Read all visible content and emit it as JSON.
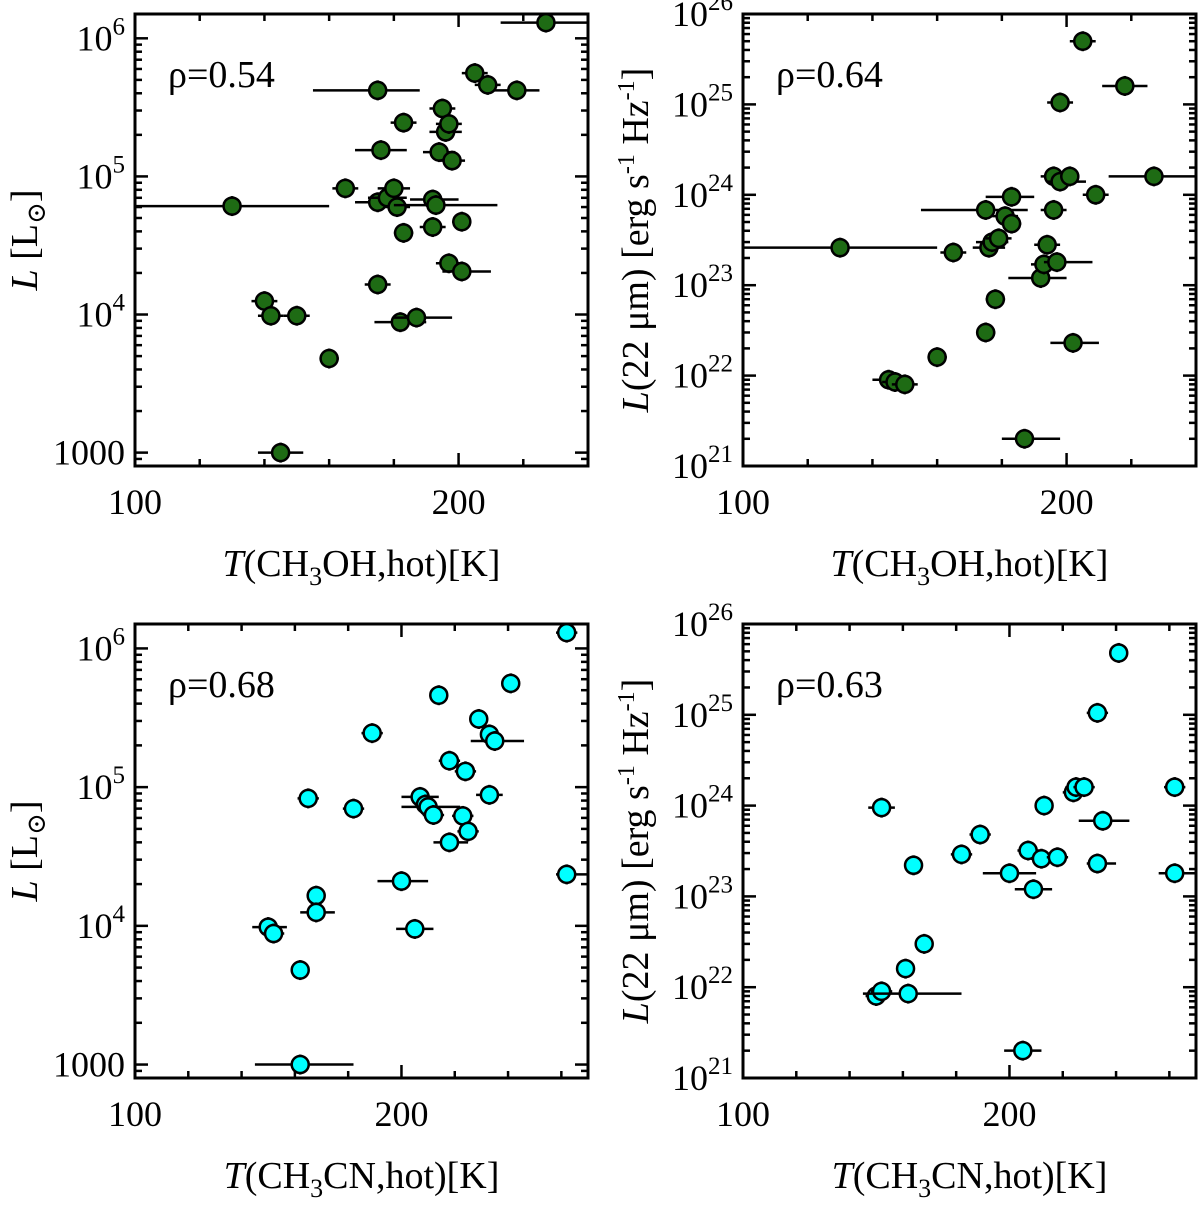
{
  "chart_data": [
    {
      "type": "scatter",
      "id": "top-left",
      "annotation": "ρ=0.54",
      "xlabel": {
        "italic": "T",
        "pre": "(CH",
        "sub": "3",
        "post": "OH,hot)[K]"
      },
      "ylabel": {
        "italic": "L",
        "text": " [L",
        "sym": "⊙",
        "close": "]"
      },
      "xlim": [
        100,
        240
      ],
      "ylim": [
        800,
        1500000
      ],
      "yscale": "log",
      "xticks": [
        100,
        200
      ],
      "xtick_labels": [
        "100",
        "200"
      ],
      "yticks": [
        1000,
        10000,
        100000,
        1000000
      ],
      "ytick_labels": [
        {
          "text": "1000"
        },
        {
          "base": "10",
          "exp": "4"
        },
        {
          "base": "10",
          "exp": "5"
        },
        {
          "base": "10",
          "exp": "6"
        }
      ],
      "marker_color": "#1e6b14",
      "points": [
        {
          "x": 130,
          "y": 61000,
          "xlo": 100,
          "xhi": 160
        },
        {
          "x": 145,
          "y": 1000,
          "xlo": 138,
          "xhi": 152
        },
        {
          "x": 140,
          "y": 12500,
          "xlo": 136,
          "xhi": 144
        },
        {
          "x": 142,
          "y": 9800,
          "xlo": 138,
          "xhi": 146
        },
        {
          "x": 150,
          "y": 9800,
          "xlo": 146,
          "xhi": 154
        },
        {
          "x": 160,
          "y": 4800,
          "xlo": 157,
          "xhi": 163
        },
        {
          "x": 165,
          "y": 82000,
          "xlo": 161,
          "xhi": 169
        },
        {
          "x": 175,
          "y": 420000,
          "xlo": 155,
          "xhi": 188
        },
        {
          "x": 176,
          "y": 155000,
          "xlo": 168,
          "xhi": 184
        },
        {
          "x": 175,
          "y": 16500,
          "xlo": 171,
          "xhi": 179
        },
        {
          "x": 175,
          "y": 65000,
          "xlo": 168,
          "xhi": 182
        },
        {
          "x": 178,
          "y": 70000,
          "xlo": 172,
          "xhi": 184
        },
        {
          "x": 180,
          "y": 82000,
          "xlo": 175,
          "xhi": 185
        },
        {
          "x": 181,
          "y": 60000,
          "xlo": 177,
          "xhi": 185
        },
        {
          "x": 183,
          "y": 245000,
          "xlo": 179,
          "xhi": 187
        },
        {
          "x": 183,
          "y": 39000,
          "xlo": 180,
          "xhi": 186
        },
        {
          "x": 182,
          "y": 8800,
          "xlo": 174,
          "xhi": 190
        },
        {
          "x": 187,
          "y": 9500,
          "xlo": 180,
          "xhi": 198
        },
        {
          "x": 192,
          "y": 68000,
          "xlo": 185,
          "xhi": 200
        },
        {
          "x": 192,
          "y": 43000,
          "xlo": 188,
          "xhi": 196
        },
        {
          "x": 193,
          "y": 62000,
          "xlo": 180,
          "xhi": 212
        },
        {
          "x": 194,
          "y": 150000,
          "xlo": 189,
          "xhi": 199
        },
        {
          "x": 195,
          "y": 310000,
          "xlo": 191,
          "xhi": 199
        },
        {
          "x": 196,
          "y": 210000,
          "xlo": 191,
          "xhi": 201
        },
        {
          "x": 197,
          "y": 240000,
          "xlo": 193,
          "xhi": 201
        },
        {
          "x": 198,
          "y": 130000,
          "xlo": 194,
          "xhi": 202
        },
        {
          "x": 197,
          "y": 23500,
          "xlo": 193,
          "xhi": 201
        },
        {
          "x": 201,
          "y": 47000,
          "xlo": 198,
          "xhi": 204
        },
        {
          "x": 201,
          "y": 20500,
          "xlo": 195,
          "xhi": 210
        },
        {
          "x": 205,
          "y": 560000,
          "xlo": 201,
          "xhi": 209
        },
        {
          "x": 209,
          "y": 460000,
          "xlo": 205,
          "xhi": 213
        },
        {
          "x": 218,
          "y": 420000,
          "xlo": 211,
          "xhi": 225
        },
        {
          "x": 227,
          "y": 1300000,
          "xlo": 213,
          "xhi": 240
        }
      ]
    },
    {
      "type": "scatter",
      "id": "top-right",
      "annotation": "ρ=0.64",
      "xlabel": {
        "italic": "T",
        "pre": "(CH",
        "sub": "3",
        "post": "OH,hot)[K]"
      },
      "ylabel": {
        "italic": "L",
        "text": "(22 μm) [erg s",
        "sup1": "-1",
        "mid": " Hz",
        "sup2": "-1",
        "close": "]"
      },
      "xlim": [
        100,
        240
      ],
      "ylim": [
        1e+21,
        1e+26
      ],
      "yscale": "log",
      "xticks": [
        100,
        200
      ],
      "xtick_labels": [
        "100",
        "200"
      ],
      "yticks": [
        1e+21,
        1e+22,
        1e+23,
        1e+24,
        1e+25,
        1e+26
      ],
      "ytick_labels": [
        {
          "base": "10",
          "exp": "21"
        },
        {
          "base": "10",
          "exp": "22"
        },
        {
          "base": "10",
          "exp": "23"
        },
        {
          "base": "10",
          "exp": "24"
        },
        {
          "base": "10",
          "exp": "25"
        },
        {
          "base": "10",
          "exp": "26"
        }
      ],
      "marker_color": "#1e6b14",
      "points": [
        {
          "x": 130,
          "y": 2.6e+23,
          "xlo": 100,
          "xhi": 160
        },
        {
          "x": 145,
          "y": 9e+21,
          "xlo": 140,
          "xhi": 152
        },
        {
          "x": 147,
          "y": 8.5e+21,
          "xlo": 143,
          "xhi": 151
        },
        {
          "x": 150,
          "y": 8e+21,
          "xlo": 146,
          "xhi": 154
        },
        {
          "x": 160,
          "y": 1.6e+22,
          "xlo": 157,
          "xhi": 163
        },
        {
          "x": 165,
          "y": 2.3e+23,
          "xlo": 161,
          "xhi": 169
        },
        {
          "x": 175,
          "y": 6.8e+23,
          "xlo": 155,
          "xhi": 188
        },
        {
          "x": 175,
          "y": 3e+22,
          "xlo": 172,
          "xhi": 178
        },
        {
          "x": 176,
          "y": 2.6e+23,
          "xlo": 171,
          "xhi": 181
        },
        {
          "x": 177,
          "y": 3e+23,
          "xlo": 172,
          "xhi": 182
        },
        {
          "x": 178,
          "y": 7e+22,
          "xlo": 175,
          "xhi": 181
        },
        {
          "x": 179,
          "y": 3.3e+23,
          "xlo": 175,
          "xhi": 183
        },
        {
          "x": 181,
          "y": 5.8e+23,
          "xlo": 177,
          "xhi": 185
        },
        {
          "x": 183,
          "y": 9.5e+23,
          "xlo": 175,
          "xhi": 190
        },
        {
          "x": 183,
          "y": 4.8e+23,
          "xlo": 180,
          "xhi": 186
        },
        {
          "x": 187,
          "y": 2e+21,
          "xlo": 180,
          "xhi": 198
        },
        {
          "x": 192,
          "y": 1.2e+23,
          "xlo": 182,
          "xhi": 200
        },
        {
          "x": 193,
          "y": 1.7e+23,
          "xlo": 189,
          "xhi": 197
        },
        {
          "x": 194,
          "y": 2.8e+23,
          "xlo": 190,
          "xhi": 198
        },
        {
          "x": 196,
          "y": 6.8e+23,
          "xlo": 192,
          "xhi": 200
        },
        {
          "x": 196,
          "y": 1.6e+24,
          "xlo": 192,
          "xhi": 200
        },
        {
          "x": 197,
          "y": 1.8e+23,
          "xlo": 193,
          "xhi": 208
        },
        {
          "x": 198,
          "y": 1.05e+25,
          "xlo": 194,
          "xhi": 202
        },
        {
          "x": 198,
          "y": 1.4e+24,
          "xlo": 194,
          "xhi": 206
        },
        {
          "x": 201,
          "y": 1.6e+24,
          "xlo": 198,
          "xhi": 204
        },
        {
          "x": 202,
          "y": 2.3e+22,
          "xlo": 195,
          "xhi": 210
        },
        {
          "x": 205,
          "y": 5e+25,
          "xlo": 201,
          "xhi": 209
        },
        {
          "x": 209,
          "y": 1e+24,
          "xlo": 205,
          "xhi": 213
        },
        {
          "x": 218,
          "y": 1.6e+25,
          "xlo": 211,
          "xhi": 225
        },
        {
          "x": 227,
          "y": 1.6e+24,
          "xlo": 213,
          "xhi": 240
        }
      ]
    },
    {
      "type": "scatter",
      "id": "bottom-left",
      "annotation": "ρ=0.68",
      "xlabel": {
        "italic": "T",
        "pre": "(CH",
        "sub": "3",
        "post": "CN,hot)[K]"
      },
      "ylabel": {
        "italic": "L",
        "text": " [L",
        "sym": "⊙",
        "close": "]"
      },
      "xlim": [
        100,
        270
      ],
      "ylim": [
        800,
        1500000
      ],
      "yscale": "log",
      "xticks": [
        100,
        200
      ],
      "xtick_labels": [
        "100",
        "200"
      ],
      "yticks": [
        1000,
        10000,
        100000,
        1000000
      ],
      "ytick_labels": [
        {
          "text": "1000"
        },
        {
          "base": "10",
          "exp": "4"
        },
        {
          "base": "10",
          "exp": "5"
        },
        {
          "base": "10",
          "exp": "6"
        }
      ],
      "marker_color": "#00ffff",
      "points": [
        {
          "x": 162,
          "y": 1000,
          "xlo": 145,
          "xhi": 182
        },
        {
          "x": 150,
          "y": 9800,
          "xlo": 144,
          "xhi": 157
        },
        {
          "x": 152,
          "y": 8800,
          "xlo": 148,
          "xhi": 156
        },
        {
          "x": 162,
          "y": 4800,
          "xlo": 159,
          "xhi": 165
        },
        {
          "x": 165,
          "y": 83000,
          "xlo": 161,
          "xhi": 169
        },
        {
          "x": 168,
          "y": 16500,
          "xlo": 165,
          "xhi": 171
        },
        {
          "x": 168,
          "y": 12500,
          "xlo": 162,
          "xhi": 175
        },
        {
          "x": 182,
          "y": 70000,
          "xlo": 178,
          "xhi": 186
        },
        {
          "x": 189,
          "y": 245000,
          "xlo": 185,
          "xhi": 193
        },
        {
          "x": 200,
          "y": 21000,
          "xlo": 191,
          "xhi": 210
        },
        {
          "x": 205,
          "y": 9500,
          "xlo": 198,
          "xhi": 212
        },
        {
          "x": 207,
          "y": 85000,
          "xlo": 200,
          "xhi": 214
        },
        {
          "x": 209,
          "y": 75000,
          "xlo": 205,
          "xhi": 213
        },
        {
          "x": 210,
          "y": 72000,
          "xlo": 200,
          "xhi": 222
        },
        {
          "x": 212,
          "y": 63000,
          "xlo": 208,
          "xhi": 216
        },
        {
          "x": 214,
          "y": 460000,
          "xlo": 211,
          "xhi": 217
        },
        {
          "x": 218,
          "y": 155000,
          "xlo": 214,
          "xhi": 222
        },
        {
          "x": 218,
          "y": 40000,
          "xlo": 212,
          "xhi": 225
        },
        {
          "x": 223,
          "y": 62000,
          "xlo": 219,
          "xhi": 227
        },
        {
          "x": 224,
          "y": 130000,
          "xlo": 220,
          "xhi": 228
        },
        {
          "x": 225,
          "y": 48000,
          "xlo": 221,
          "xhi": 229
        },
        {
          "x": 229,
          "y": 310000,
          "xlo": 226,
          "xhi": 232
        },
        {
          "x": 233,
          "y": 88000,
          "xlo": 228,
          "xhi": 238
        },
        {
          "x": 233,
          "y": 240000,
          "xlo": 230,
          "xhi": 237
        },
        {
          "x": 235,
          "y": 215000,
          "xlo": 226,
          "xhi": 246
        },
        {
          "x": 241,
          "y": 560000,
          "xlo": 238,
          "xhi": 244
        },
        {
          "x": 262,
          "y": 1300000,
          "xlo": 258,
          "xhi": 266
        },
        {
          "x": 262,
          "y": 23500,
          "xlo": 258,
          "xhi": 270
        }
      ]
    },
    {
      "type": "scatter",
      "id": "bottom-right",
      "annotation": "ρ=0.63",
      "xlabel": {
        "italic": "T",
        "pre": "(CH",
        "sub": "3",
        "post": "CN,hot)[K]"
      },
      "ylabel": {
        "italic": "L",
        "text": "(22 μm) [erg s",
        "sup1": "-1",
        "mid": " Hz",
        "sup2": "-1",
        "close": "]"
      },
      "xlim": [
        100,
        270
      ],
      "ylim": [
        1e+21,
        1e+26
      ],
      "yscale": "log",
      "xticks": [
        100,
        200
      ],
      "xtick_labels": [
        "100",
        "200"
      ],
      "yticks": [
        1e+21,
        1e+22,
        1e+23,
        1e+24,
        1e+25,
        1e+26
      ],
      "ytick_labels": [
        {
          "base": "10",
          "exp": "21"
        },
        {
          "base": "10",
          "exp": "22"
        },
        {
          "base": "10",
          "exp": "23"
        },
        {
          "base": "10",
          "exp": "24"
        },
        {
          "base": "10",
          "exp": "25"
        },
        {
          "base": "10",
          "exp": "26"
        }
      ],
      "marker_color": "#00ffff",
      "points": [
        {
          "x": 150,
          "y": 8e+21,
          "xlo": 146,
          "xhi": 154
        },
        {
          "x": 152,
          "y": 9e+21,
          "xlo": 148,
          "xhi": 156
        },
        {
          "x": 152,
          "y": 9.5e+23,
          "xlo": 147,
          "xhi": 157
        },
        {
          "x": 161,
          "y": 1.6e+22,
          "xlo": 158,
          "xhi": 164
        },
        {
          "x": 162,
          "y": 8.5e+21,
          "xlo": 145,
          "xhi": 182
        },
        {
          "x": 164,
          "y": 2.2e+23,
          "xlo": 161,
          "xhi": 167
        },
        {
          "x": 168,
          "y": 3e+22,
          "xlo": 165,
          "xhi": 171
        },
        {
          "x": 182,
          "y": 2.9e+23,
          "xlo": 178,
          "xhi": 186
        },
        {
          "x": 189,
          "y": 4.8e+23,
          "xlo": 185,
          "xhi": 193
        },
        {
          "x": 200,
          "y": 1.8e+23,
          "xlo": 190,
          "xhi": 210
        },
        {
          "x": 205,
          "y": 2e+21,
          "xlo": 198,
          "xhi": 212
        },
        {
          "x": 207,
          "y": 3.2e+23,
          "xlo": 203,
          "xhi": 211
        },
        {
          "x": 209,
          "y": 1.2e+23,
          "xlo": 202,
          "xhi": 216
        },
        {
          "x": 212,
          "y": 2.6e+23,
          "xlo": 208,
          "xhi": 216
        },
        {
          "x": 213,
          "y": 1e+24,
          "xlo": 210,
          "xhi": 216
        },
        {
          "x": 218,
          "y": 2.7e+23,
          "xlo": 214,
          "xhi": 222
        },
        {
          "x": 224,
          "y": 1.4e+24,
          "xlo": 220,
          "xhi": 228
        },
        {
          "x": 225,
          "y": 1.6e+24,
          "xlo": 221,
          "xhi": 229
        },
        {
          "x": 228,
          "y": 1.6e+24,
          "xlo": 224,
          "xhi": 232
        },
        {
          "x": 233,
          "y": 1.05e+25,
          "xlo": 229,
          "xhi": 237
        },
        {
          "x": 233,
          "y": 2.3e+23,
          "xlo": 229,
          "xhi": 240
        },
        {
          "x": 235,
          "y": 6.8e+23,
          "xlo": 226,
          "xhi": 245
        },
        {
          "x": 241,
          "y": 4.8e+25,
          "xlo": 238,
          "xhi": 244
        },
        {
          "x": 262,
          "y": 1.6e+24,
          "xlo": 258,
          "xhi": 266
        },
        {
          "x": 262,
          "y": 1.8e+23,
          "xlo": 256,
          "xhi": 270
        }
      ]
    }
  ]
}
